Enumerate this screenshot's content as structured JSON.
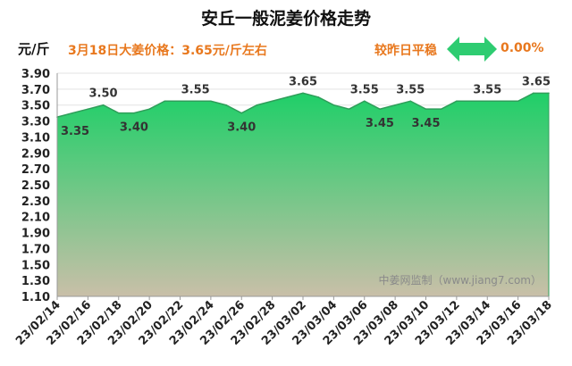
{
  "header": {
    "title": "安丘一般泥姜价格走势",
    "unit": "元/斤",
    "price_text": "3月18日大姜价格：3.65元/斤左右",
    "compare_label": "较昨日平稳",
    "change_pct": "0.00%",
    "arrow_icon": "double-arrow-icon"
  },
  "watermark": "中姜网监制（www.jiang7.com）",
  "colors": {
    "area_top": "#1fcf68",
    "area_bottom": "#c9bfa8",
    "line": "#2f9e5a",
    "arrow": "#2ecc71",
    "accent": "#e8781e"
  },
  "chart_data": {
    "type": "area",
    "title": "安丘一般泥姜价格走势",
    "ylabel": "元/斤",
    "ylim": [
      1.1,
      3.9
    ],
    "y_ticks": [
      "1.10",
      "1.30",
      "1.50",
      "1.70",
      "1.90",
      "2.10",
      "2.30",
      "2.50",
      "2.70",
      "2.90",
      "3.10",
      "3.30",
      "3.50",
      "3.70",
      "3.90"
    ],
    "x": [
      "23/02/14",
      "23/02/15",
      "23/02/16",
      "23/02/17",
      "23/02/18",
      "23/02/19",
      "23/02/20",
      "23/02/21",
      "23/02/22",
      "23/02/23",
      "23/02/24",
      "23/02/25",
      "23/02/26",
      "23/02/27",
      "23/02/28",
      "23/03/01",
      "23/03/02",
      "23/03/03",
      "23/03/04",
      "23/03/05",
      "23/03/06",
      "23/03/07",
      "23/03/08",
      "23/03/09",
      "23/03/10",
      "23/03/11",
      "23/03/12",
      "23/03/13",
      "23/03/14",
      "23/03/15",
      "23/03/16",
      "23/03/17",
      "23/03/18"
    ],
    "x_tick_labels": [
      "23/02/14",
      "23/02/16",
      "23/02/18",
      "23/02/20",
      "23/02/22",
      "23/02/24",
      "23/02/26",
      "23/02/28",
      "23/03/02",
      "23/03/04",
      "23/03/06",
      "23/03/08",
      "23/03/10",
      "23/03/12",
      "23/03/14",
      "23/03/16",
      "23/03/18"
    ],
    "values": [
      3.35,
      3.4,
      3.45,
      3.5,
      3.4,
      3.4,
      3.45,
      3.55,
      3.55,
      3.55,
      3.55,
      3.5,
      3.4,
      3.5,
      3.55,
      3.6,
      3.65,
      3.6,
      3.5,
      3.45,
      3.55,
      3.45,
      3.5,
      3.55,
      3.45,
      3.45,
      3.55,
      3.55,
      3.55,
      3.55,
      3.55,
      3.65,
      3.65
    ],
    "data_labels": [
      {
        "x": "23/02/14",
        "text": "3.35",
        "pos": "below"
      },
      {
        "x": "23/02/17",
        "text": "3.50",
        "pos": "above"
      },
      {
        "x": "23/02/19",
        "text": "3.40",
        "pos": "below"
      },
      {
        "x": "23/02/23",
        "text": "3.55",
        "pos": "above"
      },
      {
        "x": "23/02/26",
        "text": "3.40",
        "pos": "below"
      },
      {
        "x": "23/03/02",
        "text": "3.65",
        "pos": "above"
      },
      {
        "x": "23/03/06",
        "text": "3.55",
        "pos": "above"
      },
      {
        "x": "23/03/07",
        "text": "3.45",
        "pos": "below"
      },
      {
        "x": "23/03/09",
        "text": "3.55",
        "pos": "above"
      },
      {
        "x": "23/03/10",
        "text": "3.45",
        "pos": "below"
      },
      {
        "x": "23/03/14",
        "text": "3.55",
        "pos": "above"
      },
      {
        "x": "23/03/18",
        "text": "3.65",
        "pos": "above"
      }
    ]
  }
}
